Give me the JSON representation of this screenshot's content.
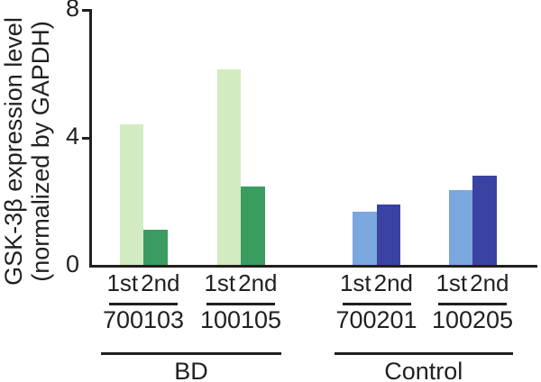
{
  "figure": {
    "background": "#ffffff",
    "text_color": "#231f20",
    "axis_color": "#231f20"
  },
  "chart_data": {
    "type": "bar",
    "title": "",
    "ylabel_line1": "GSK-3β expression level",
    "ylabel_line2": "(normalized by GAPDH)",
    "xlabel": "",
    "ylim": [
      0,
      8
    ],
    "yticks": [
      8,
      4,
      0
    ],
    "grid": false,
    "legend": false,
    "series_labels": [
      "1st",
      "2nd"
    ],
    "groups": [
      {
        "sample_id": "700103",
        "cohort": "BD",
        "values": [
          4.4,
          1.1
        ]
      },
      {
        "sample_id": "100105",
        "cohort": "BD",
        "values": [
          6.1,
          2.45
        ]
      },
      {
        "sample_id": "700201",
        "cohort": "Control",
        "values": [
          1.65,
          1.9
        ]
      },
      {
        "sample_id": "100205",
        "cohort": "Control",
        "values": [
          2.35,
          2.8
        ]
      }
    ],
    "cohorts": [
      {
        "label": "BD",
        "series_colors": [
          "#d2ebc1",
          "#3b9c62"
        ]
      },
      {
        "label": "Control",
        "series_colors": [
          "#7aa7de",
          "#3a42a2"
        ]
      }
    ]
  }
}
